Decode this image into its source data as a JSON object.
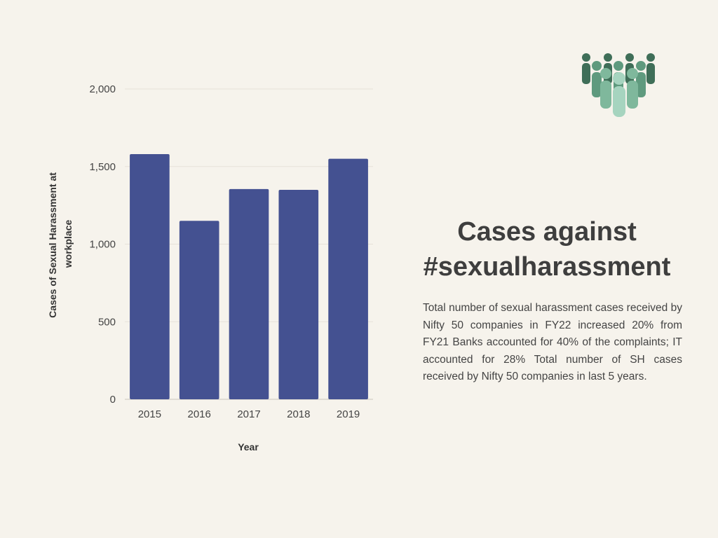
{
  "colors": {
    "background": "#f6f3ec",
    "bar": "#445191",
    "grid": "#e6e2d9",
    "text": "#444444",
    "heading": "#3e3e3e",
    "icon_dark": "#3f6e58",
    "icon_mid": "#5f9a7e",
    "icon_light": "#a6d4bf"
  },
  "heading": "Cases against #sexualharassment",
  "description": "Total number of sexual harassment cases received by Nifty 50 companies in FY22 increased 20% from FY21 Banks accounted for 40% of the complaints; IT accounted for 28% Total number of SH cases received by Nifty 50 companies in last 5 years.",
  "icon": "group-of-people-icon",
  "chart_data": {
    "type": "bar",
    "categories": [
      "2015",
      "2016",
      "2017",
      "2018",
      "2019"
    ],
    "values": [
      1580,
      1150,
      1355,
      1350,
      1550
    ],
    "xlabel": "Year",
    "ylabel": "Cases of Sexual Harassment at workplace",
    "ylabel_lines": [
      "Cases of Sexual Harassment at",
      "workplace"
    ],
    "ylim": [
      0,
      2000
    ],
    "yticks": [
      0,
      500,
      1000,
      1500,
      2000
    ],
    "ytick_labels": [
      "0",
      "500",
      "1,000",
      "1,500",
      "2,000"
    ],
    "grid": true,
    "legend": "none"
  }
}
